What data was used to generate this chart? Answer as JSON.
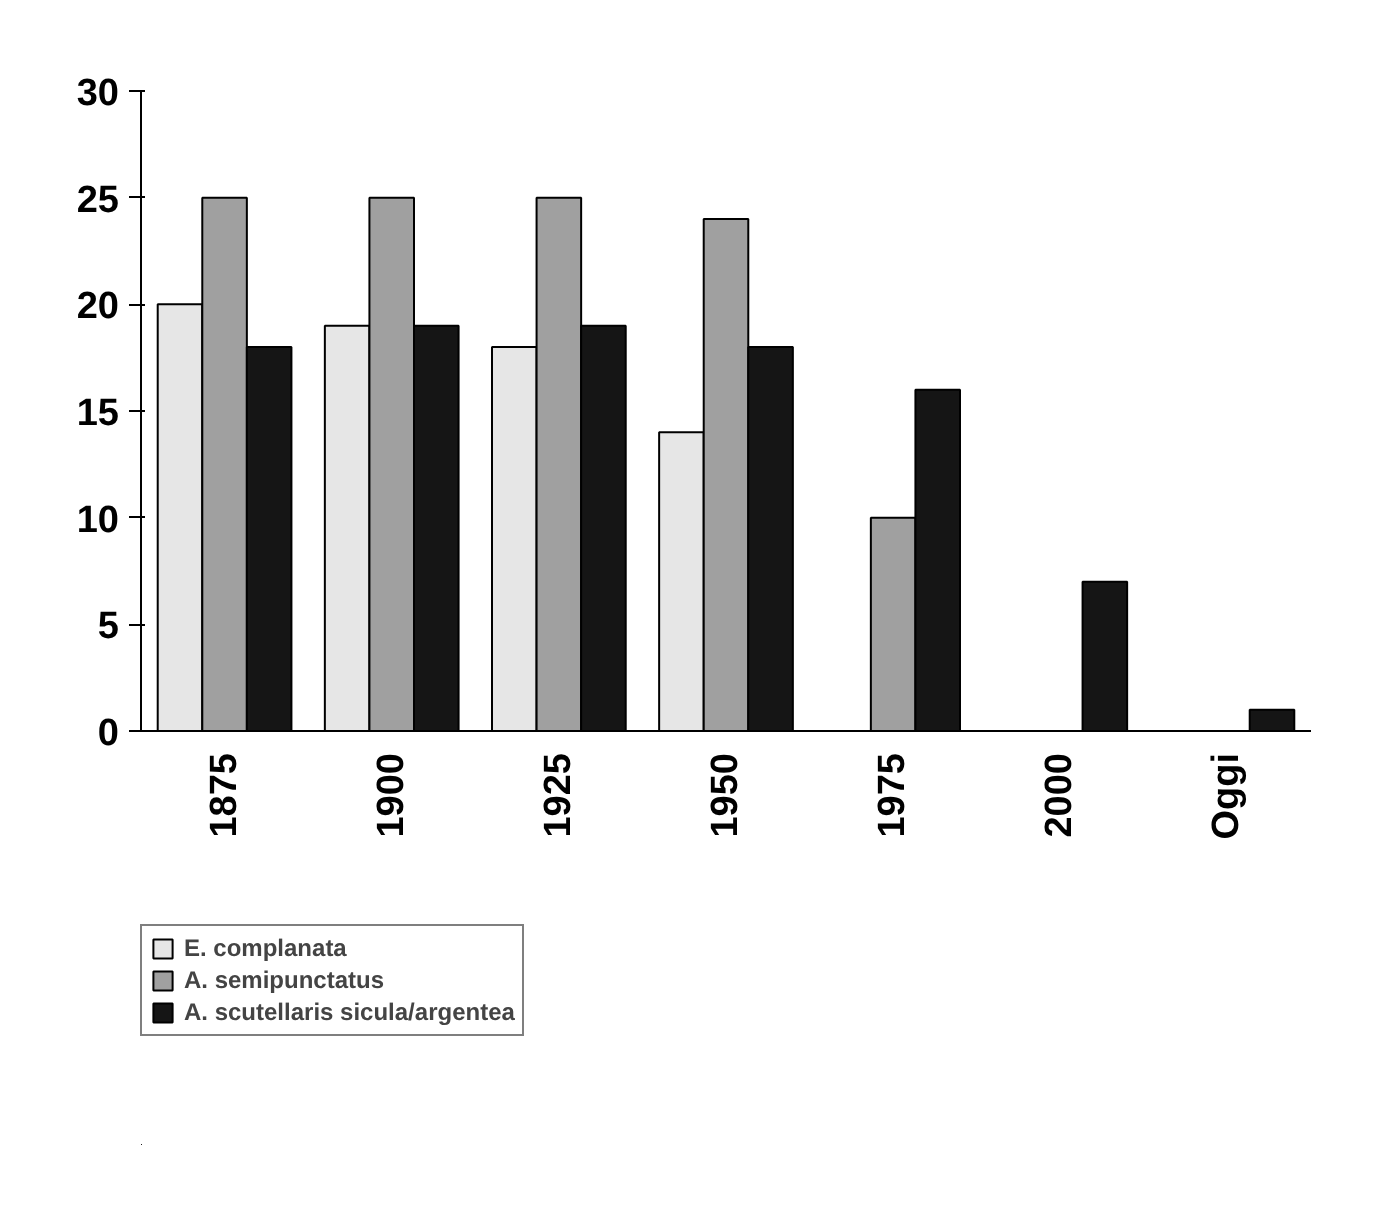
{
  "chart_data": {
    "type": "bar",
    "categories": [
      "1875",
      "1900",
      "1925",
      "1950",
      "1975",
      "2000",
      "Oggi"
    ],
    "series": [
      {
        "name": "E. complanata",
        "color": "#e6e6e6",
        "values": [
          20,
          19,
          18,
          14,
          null,
          null,
          null
        ]
      },
      {
        "name": "A. semipunctatus",
        "color": "#a0a0a0",
        "values": [
          25,
          25,
          25,
          24,
          10,
          null,
          null
        ]
      },
      {
        "name": "A. scutellaris sicula/argentea",
        "color": "#151515",
        "values": [
          18,
          19,
          19,
          18,
          16,
          7,
          1
        ]
      }
    ],
    "ylim": [
      0,
      30
    ],
    "yticks": [
      0,
      5,
      10,
      15,
      20,
      25,
      30
    ],
    "grid": false,
    "legend": "bottom left"
  }
}
